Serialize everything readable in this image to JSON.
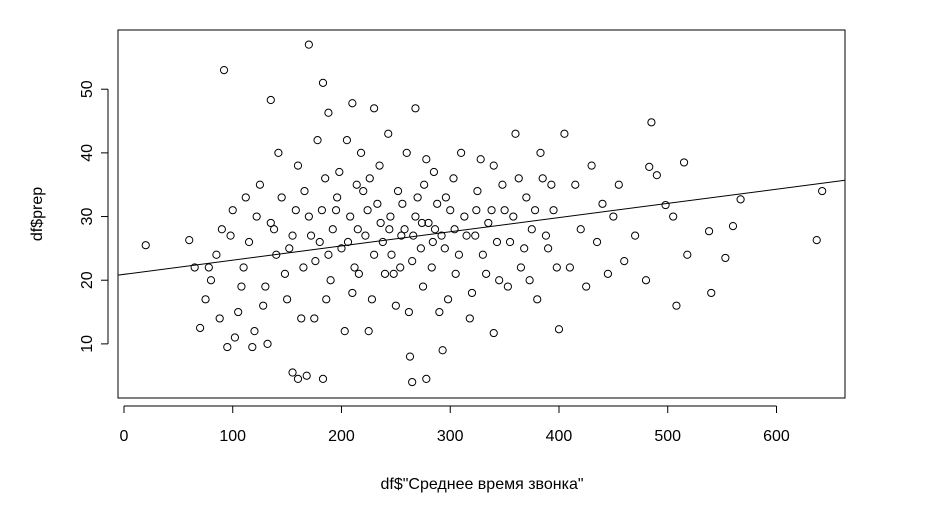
{
  "chart_data": {
    "type": "scatter",
    "x_label": "df$\"Среднее время звонка\"",
    "y_label": "df$prep",
    "xlim": [
      -5.5,
      663
    ],
    "ylim": [
      1.5,
      59.3
    ],
    "xticks": [
      0,
      100,
      200,
      300,
      400,
      500,
      600
    ],
    "yticks": [
      10,
      20,
      30,
      40,
      50
    ],
    "color": "#000000",
    "trend_line": {
      "x": [
        -5.5,
        663
      ],
      "y": [
        20.8,
        35.7
      ]
    },
    "x": [
      20,
      60,
      65,
      70,
      95,
      92,
      170,
      135,
      183,
      210,
      188,
      265,
      278,
      183,
      160,
      155,
      168,
      230,
      268,
      637,
      642,
      567,
      560,
      540,
      553,
      538,
      518,
      508,
      515,
      485,
      483,
      490,
      498,
      505,
      400,
      340,
      293,
      263,
      480,
      470,
      460,
      75,
      80,
      85,
      90,
      100,
      105,
      110,
      115,
      120,
      125,
      130,
      135,
      140,
      145,
      150,
      155,
      160,
      165,
      170,
      175,
      180,
      185,
      190,
      195,
      200,
      205,
      210,
      215,
      220,
      225,
      230,
      235,
      240,
      245,
      250,
      255,
      260,
      265,
      270,
      275,
      280,
      285,
      290,
      295,
      300,
      305,
      310,
      315,
      320,
      325,
      330,
      335,
      340,
      345,
      350,
      355,
      360,
      365,
      370,
      375,
      380,
      385,
      390,
      395,
      405,
      410,
      415,
      420,
      425,
      430,
      435,
      440,
      445,
      450,
      455,
      112,
      128,
      142,
      148,
      158,
      163,
      172,
      178,
      186,
      192,
      198,
      203,
      208,
      212,
      218,
      222,
      228,
      233,
      238,
      243,
      248,
      252,
      258,
      262,
      268,
      273,
      278,
      283,
      288,
      292,
      298,
      303,
      308,
      313,
      318,
      323,
      328,
      333,
      338,
      343,
      348,
      353,
      358,
      363,
      368,
      373,
      378,
      383,
      388,
      393,
      398,
      188,
      196,
      206,
      214,
      224,
      236,
      246,
      256,
      266,
      276,
      286,
      296,
      216,
      226,
      244,
      254,
      274,
      284,
      304,
      324,
      182,
      176,
      166,
      152,
      138,
      122,
      108,
      98,
      88,
      78,
      102,
      118,
      132
    ],
    "y": [
      25.5,
      26.3,
      22,
      12.5,
      9.5,
      53,
      57,
      48.3,
      51,
      47.8,
      46.3,
      4,
      4.5,
      4.5,
      4.5,
      5.5,
      5,
      47,
      47,
      26.3,
      34,
      32.7,
      28.5,
      18,
      23.5,
      27.7,
      24,
      16,
      38.5,
      44.8,
      37.8,
      36.5,
      31.8,
      30,
      12.3,
      11.7,
      9,
      8,
      20,
      27,
      23,
      17,
      20,
      24,
      28,
      31,
      15,
      22,
      26,
      12,
      35,
      19,
      29,
      24,
      33,
      17,
      27,
      38,
      22,
      30,
      14,
      26,
      36,
      20,
      31,
      25,
      42,
      18,
      28,
      34,
      12,
      24,
      38,
      21,
      30,
      16,
      27,
      40,
      23,
      33,
      19,
      29,
      37,
      15,
      25,
      31,
      21,
      40,
      27,
      18,
      34,
      24,
      29,
      38,
      20,
      31,
      26,
      43,
      22,
      33,
      28,
      17,
      36,
      25,
      31,
      43,
      22,
      35,
      28,
      19,
      38,
      26,
      32,
      21,
      30,
      35,
      33,
      16,
      40,
      21,
      31,
      14,
      27,
      42,
      17,
      28,
      37,
      12,
      30,
      22,
      40,
      27,
      17,
      32,
      26,
      43,
      21,
      34,
      28,
      15,
      30,
      25,
      39,
      22,
      32,
      27,
      17,
      36,
      24,
      30,
      14,
      27,
      39,
      21,
      31,
      26,
      35,
      19,
      30,
      36,
      25,
      20,
      31,
      40,
      27,
      35,
      22,
      24,
      33,
      26,
      35,
      31,
      29,
      24,
      32,
      27,
      35,
      28,
      33,
      21,
      36,
      28,
      22,
      29,
      26,
      28,
      31,
      31,
      23,
      34,
      25,
      28,
      30,
      19,
      27,
      14,
      22,
      11,
      9.5,
      10
    ]
  }
}
